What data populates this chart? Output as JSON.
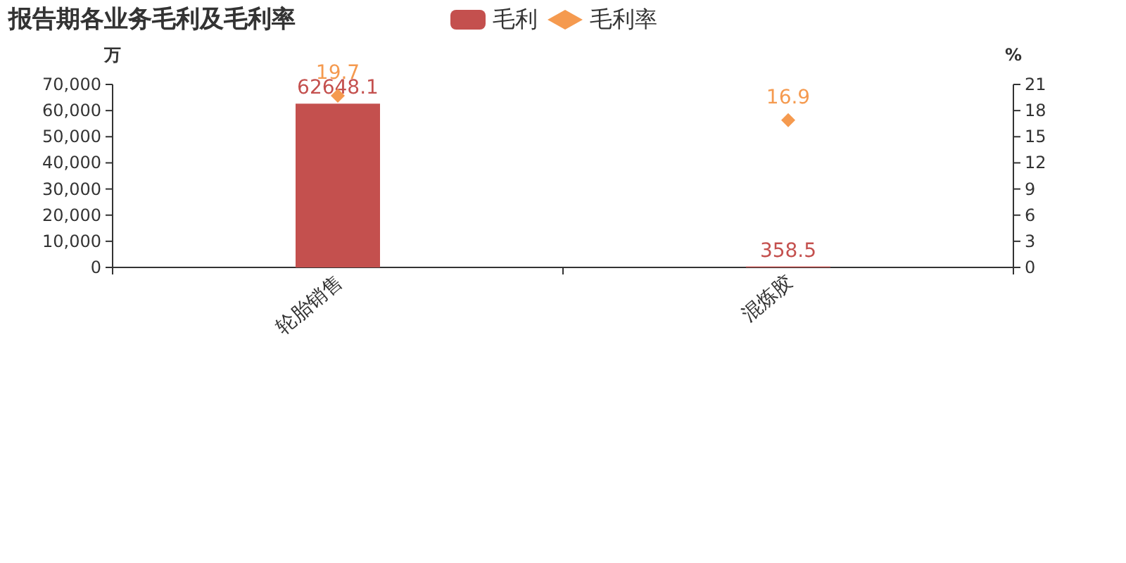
{
  "chart_data": {
    "type": "bar",
    "title": "报告期各业务毛利及毛利率",
    "categories": [
      "轮胎销售",
      "混炼胶"
    ],
    "series": [
      {
        "name": "毛利",
        "color": "#c4504e",
        "values": [
          62648.1,
          358.5
        ]
      },
      {
        "name": "毛利率",
        "type": "scatter",
        "axis": "y2",
        "color": "#f59a4f",
        "values": [
          19.7,
          16.9
        ]
      }
    ],
    "ylabel": "万",
    "y2label": "%",
    "ylim": [
      0,
      70000
    ],
    "yticks": [
      {
        "value": 0,
        "label": "0"
      },
      {
        "value": 10000,
        "label": "10,000"
      },
      {
        "value": 20000,
        "label": "20,000"
      },
      {
        "value": 30000,
        "label": "30,000"
      },
      {
        "value": 40000,
        "label": "40,000"
      },
      {
        "value": 50000,
        "label": "50,000"
      },
      {
        "value": 60000,
        "label": "60,000"
      },
      {
        "value": 70000,
        "label": "70,000"
      }
    ],
    "y2lim": [
      0,
      21
    ],
    "y2ticks": [
      0,
      3,
      6,
      9,
      12,
      15,
      18,
      21
    ],
    "marker": "diamond",
    "data_labels": true,
    "legend": "top",
    "grid": false
  }
}
